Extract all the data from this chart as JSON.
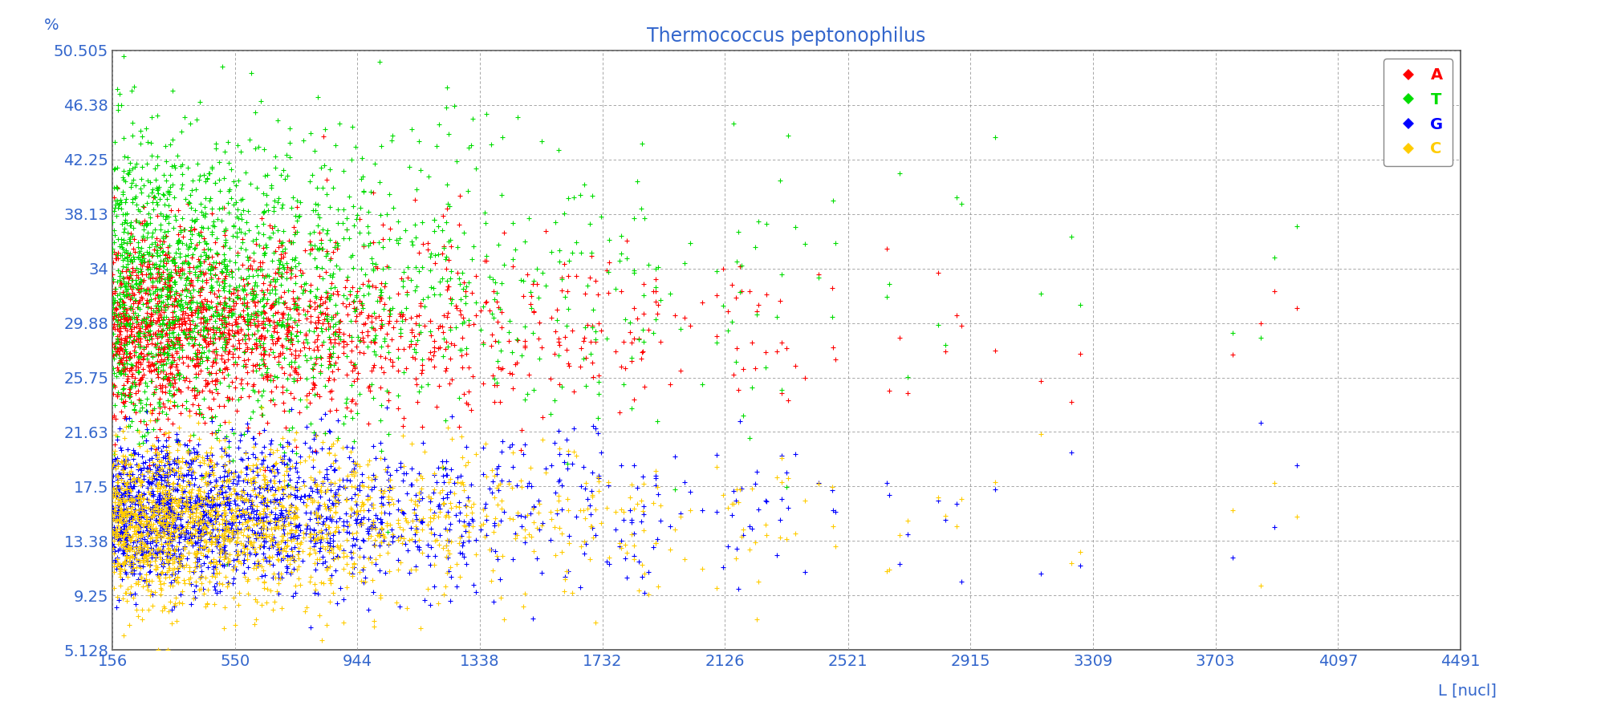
{
  "title": "Thermococcus peptonophilus",
  "xlabel": "L [nucl]",
  "ylabel": "%",
  "xlim": [
    156,
    4491
  ],
  "ylim": [
    5.128,
    50.505
  ],
  "xticks": [
    156,
    550,
    944,
    1338,
    1732,
    2126,
    2521,
    2915,
    3309,
    3703,
    4097,
    4491
  ],
  "yticks": [
    5.128,
    9.25,
    13.38,
    17.5,
    21.63,
    25.75,
    29.88,
    34,
    38.13,
    42.25,
    46.38,
    50.505
  ],
  "ytick_labels": [
    "5.128",
    "9.25",
    "13.38",
    "17.5",
    "21.63",
    "25.75",
    "29.88",
    "34",
    "38.13",
    "42.25",
    "46.38",
    "50.505"
  ],
  "colors": {
    "A": "#ff0000",
    "T": "#00dd00",
    "G": "#0000ff",
    "C": "#ffcc00"
  },
  "legend_labels": [
    "A",
    "T",
    "G",
    "C"
  ],
  "background_color": "#ffffff",
  "title_color": "#3366cc",
  "axis_color": "#3366cc",
  "grid_color": "#999999",
  "seed": 42,
  "n_genes": 1800,
  "x_scale": 500
}
